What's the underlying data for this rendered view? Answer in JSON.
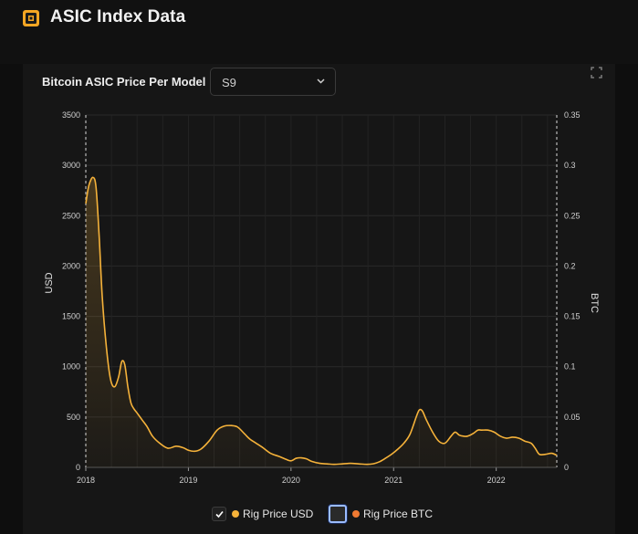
{
  "app": {
    "title": "ASIC Index Data",
    "logo_icon": "asic-chip-icon"
  },
  "controls": {
    "chart_label": "Bitcoin ASIC Price Per Model",
    "model_select": {
      "value": "S9",
      "options": [
        "S9"
      ]
    },
    "expand_icon": "expand-icon"
  },
  "legend": {
    "items": [
      {
        "label": "Rig Price USD",
        "checked": true,
        "color": "#f5b23a"
      },
      {
        "label": "Rig Price BTC",
        "checked": false,
        "color": "#f07a32"
      }
    ]
  },
  "chart_data": {
    "type": "line",
    "title": "",
    "xlabel": "",
    "ylabel": "USD",
    "y2label": "BTC",
    "x_ticks": [
      "2018",
      "2019",
      "2020",
      "2021",
      "2022"
    ],
    "xlim": [
      2018.0,
      2022.59
    ],
    "ylim": [
      0,
      3500
    ],
    "y_ticks": [
      0,
      500,
      1000,
      1500,
      2000,
      2500,
      3000,
      3500
    ],
    "y2lim": [
      0,
      0.35
    ],
    "y2_ticks": [
      "0",
      "0.05",
      "0.1",
      "0.15",
      "0.2",
      "0.25",
      "0.3",
      "0.35"
    ],
    "grid": true,
    "legend_position": "bottom",
    "series": [
      {
        "name": "Rig Price USD",
        "color": "#f5b23a",
        "x": [
          2018.0,
          2018.03,
          2018.07,
          2018.1,
          2018.13,
          2018.16,
          2018.2,
          2018.24,
          2018.28,
          2018.32,
          2018.35,
          2018.38,
          2018.41,
          2018.44,
          2018.47,
          2018.5,
          2018.55,
          2018.6,
          2018.65,
          2018.72,
          2018.8,
          2018.88,
          2018.95,
          2019.0,
          2019.06,
          2019.12,
          2019.2,
          2019.28,
          2019.35,
          2019.42,
          2019.48,
          2019.55,
          2019.6,
          2019.66,
          2019.72,
          2019.8,
          2019.88,
          2019.95,
          2020.0,
          2020.05,
          2020.1,
          2020.15,
          2020.2,
          2020.28,
          2020.35,
          2020.42,
          2020.5,
          2020.58,
          2020.66,
          2020.74,
          2020.8,
          2020.86,
          2020.92,
          2020.98,
          2021.04,
          2021.1,
          2021.16,
          2021.22,
          2021.25,
          2021.28,
          2021.32,
          2021.38,
          2021.44,
          2021.5,
          2021.56,
          2021.6,
          2021.64,
          2021.68,
          2021.72,
          2021.78,
          2021.82,
          2021.86,
          2021.92,
          2021.98,
          2022.04,
          2022.1,
          2022.16,
          2022.22,
          2022.28,
          2022.34,
          2022.38,
          2022.42,
          2022.48,
          2022.54,
          2022.59
        ],
        "y": [
          2620,
          2800,
          2880,
          2780,
          2300,
          1700,
          1200,
          880,
          800,
          900,
          1050,
          1020,
          800,
          640,
          580,
          540,
          470,
          400,
          310,
          240,
          190,
          210,
          195,
          170,
          160,
          180,
          260,
          370,
          410,
          415,
          400,
          330,
          280,
          240,
          200,
          140,
          110,
          80,
          65,
          90,
          95,
          85,
          60,
          40,
          35,
          30,
          35,
          40,
          35,
          30,
          35,
          55,
          90,
          130,
          180,
          240,
          330,
          500,
          570,
          560,
          470,
          350,
          260,
          240,
          310,
          350,
          320,
          310,
          310,
          340,
          370,
          370,
          370,
          350,
          310,
          290,
          300,
          290,
          260,
          240,
          190,
          130,
          130,
          140,
          120
        ]
      },
      {
        "name": "Rig Price BTC",
        "color": "#f07a32",
        "visible": false
      }
    ]
  }
}
